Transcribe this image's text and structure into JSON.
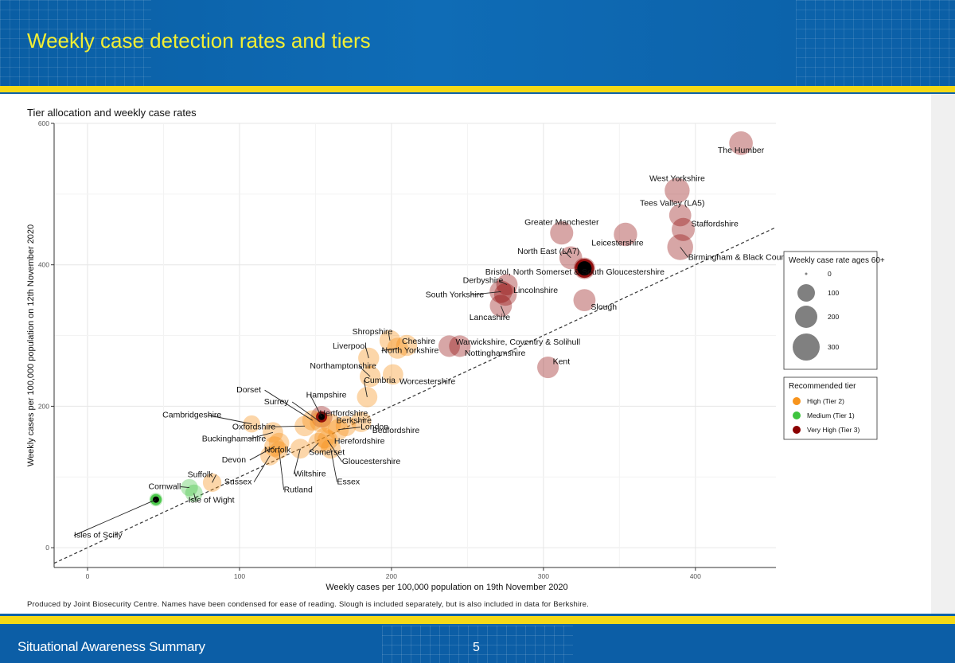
{
  "slide": {
    "title": "Weekly case detection rates and tiers",
    "footer": "Situational Awareness Summary",
    "page": "5"
  },
  "note": "Produced by Joint Biosecurity Centre. Names have been condensed for ease of reading. Slough is included separately, but is also included in data for Berkshire.",
  "colors": {
    "tier2": "#f7941d",
    "tier1": "#3ec43e",
    "tier3": "#8b0000",
    "title": "#f2ee34",
    "stripe": "#f5d915"
  },
  "chart_data": {
    "type": "scatter",
    "title": "Tier allocation and weekly case rates",
    "xlabel": "Weekly cases per 100,000 population on 19th November 2020",
    "ylabel": "Weekly cases per 100,000 population on 12th November 2020",
    "xlim": [
      -22,
      453
    ],
    "ylim": [
      -28,
      600
    ],
    "xticks": [
      0,
      100,
      200,
      300,
      400
    ],
    "yticks": [
      0,
      200,
      400,
      600
    ],
    "grid": true,
    "reference_line": "y = x",
    "legend_size": {
      "title": "Weekly case rate ages 60+",
      "entries": [
        0,
        100,
        200,
        300
      ]
    },
    "legend_tier": {
      "title": "Recommended tier",
      "entries": [
        {
          "label": "High (Tier 2)",
          "tier": "tier2"
        },
        {
          "label": "Medium (Tier 1)",
          "tier": "tier1"
        },
        {
          "label": "Very High (Tier 3)",
          "tier": "tier3"
        }
      ]
    },
    "points": [
      {
        "name": "The Humber",
        "x": 430,
        "y": 572,
        "r60": 180,
        "tier": "tier3"
      },
      {
        "name": "West Yorkshire",
        "x": 388,
        "y": 505,
        "r60": 210,
        "tier": "tier3"
      },
      {
        "name": "Tees Valley (LA5)",
        "x": 390,
        "y": 470,
        "r60": 150,
        "tier": "tier3"
      },
      {
        "name": "Staffordshire",
        "x": 392,
        "y": 450,
        "r60": 170,
        "tier": "tier3"
      },
      {
        "name": "Birmingham & Black Country",
        "x": 390,
        "y": 425,
        "r60": 230,
        "tier": "tier3"
      },
      {
        "name": "Greater Manchester",
        "x": 312,
        "y": 445,
        "r60": 170,
        "tier": "tier3"
      },
      {
        "name": "Leicestershire",
        "x": 354,
        "y": 443,
        "r60": 175,
        "tier": "tier3"
      },
      {
        "name": "North East (LA7)",
        "x": 318,
        "y": 410,
        "r60": 165,
        "tier": "tier3"
      },
      {
        "name": "Bristol, North Somerset & South Gloucestershire",
        "x": 327,
        "y": 395,
        "r60": 140,
        "tier": "tier3"
      },
      {
        "name": "Derbyshire",
        "x": 276,
        "y": 372,
        "r60": 135,
        "tier": "tier3"
      },
      {
        "name": "Lincolnshire",
        "x": 275,
        "y": 358,
        "r60": 160,
        "tier": "tier3"
      },
      {
        "name": "South Yorkshire",
        "x": 272,
        "y": 362,
        "r60": 160,
        "tier": "tier3"
      },
      {
        "name": "Lancashire",
        "x": 272,
        "y": 342,
        "r60": 150,
        "tier": "tier3"
      },
      {
        "name": "Slough",
        "x": 327,
        "y": 350,
        "r60": 150,
        "tier": "tier3"
      },
      {
        "name": "Kent",
        "x": 303,
        "y": 255,
        "r60": 140,
        "tier": "tier3"
      },
      {
        "name": "Warwickshire, Coventry & Solihull",
        "x": 238,
        "y": 285,
        "r60": 140,
        "tier": "tier3"
      },
      {
        "name": "Nottinghamshire",
        "x": 245,
        "y": 285,
        "r60": 140,
        "tier": "tier3"
      },
      {
        "name": "Shropshire",
        "x": 199,
        "y": 293,
        "r60": 130,
        "tier": "tier2"
      },
      {
        "name": "Cheshire",
        "x": 210,
        "y": 286,
        "r60": 130,
        "tier": "tier2"
      },
      {
        "name": "Liverpool",
        "x": 185,
        "y": 268,
        "r60": 130,
        "tier": "tier2"
      },
      {
        "name": "North Yorkshire",
        "x": 204,
        "y": 282,
        "r60": 130,
        "tier": "tier2"
      },
      {
        "name": "Northamptonshire",
        "x": 186,
        "y": 242,
        "r60": 130,
        "tier": "tier2"
      },
      {
        "name": "Worcestershire",
        "x": 201,
        "y": 245,
        "r60": 120,
        "tier": "tier2"
      },
      {
        "name": "Cumbria",
        "x": 184,
        "y": 213,
        "r60": 120,
        "tier": "tier2"
      },
      {
        "name": "Dorset",
        "x": 148,
        "y": 180,
        "r60": 120,
        "tier": "tier2"
      },
      {
        "name": "Surrey",
        "x": 153,
        "y": 178,
        "r60": 120,
        "tier": "tier2"
      },
      {
        "name": "Hampshire",
        "x": 154,
        "y": 185,
        "r60": 140,
        "tier": "tier3"
      },
      {
        "name": "Hertfordshire",
        "x": 160,
        "y": 175,
        "r60": 120,
        "tier": "tier2"
      },
      {
        "name": "Berkshire",
        "x": 170,
        "y": 172,
        "r60": 120,
        "tier": "tier2"
      },
      {
        "name": "London",
        "x": 165,
        "y": 167,
        "r60": 130,
        "tier": "tier2"
      },
      {
        "name": "Bedfordshire",
        "x": 180,
        "y": 178,
        "r60": 120,
        "tier": "tier2"
      },
      {
        "name": "Oxfordshire",
        "x": 143,
        "y": 172,
        "r60": 120,
        "tier": "tier2"
      },
      {
        "name": "Cambridgeshire",
        "x": 108,
        "y": 175,
        "r60": 70,
        "tier": "tier2"
      },
      {
        "name": "Buckinghamshire",
        "x": 122,
        "y": 163,
        "r60": 120,
        "tier": "tier2"
      },
      {
        "name": "Hereford­shire",
        "x": 156,
        "y": 155,
        "r60": 120,
        "tier": "tier2"
      },
      {
        "name": "Devon",
        "x": 123,
        "y": 143,
        "r60": 120,
        "tier": "tier2"
      },
      {
        "name": "Norfolk",
        "x": 126,
        "y": 148,
        "r60": 120,
        "tier": "tier2"
      },
      {
        "name": "Somerset",
        "x": 152,
        "y": 148,
        "r60": 120,
        "tier": "tier2"
      },
      {
        "name": "Gloucestershire",
        "x": 158,
        "y": 152,
        "r60": 120,
        "tier": "tier2"
      },
      {
        "name": "Sussex",
        "x": 120,
        "y": 130,
        "r60": 100,
        "tier": "tier2"
      },
      {
        "name": "Wiltshire",
        "x": 140,
        "y": 140,
        "r60": 110,
        "tier": "tier2"
      },
      {
        "name": "Essex",
        "x": 160,
        "y": 140,
        "r60": 110,
        "tier": "tier2"
      },
      {
        "name": "Rutland",
        "x": 126,
        "y": 138,
        "r60": 80,
        "tier": "tier2"
      },
      {
        "name": "Suffolk",
        "x": 82,
        "y": 92,
        "r60": 90,
        "tier": "tier2"
      },
      {
        "name": "Cornwall",
        "x": 67,
        "y": 85,
        "r60": 70,
        "tier": "tier1"
      },
      {
        "name": "Isle of Wight",
        "x": 70,
        "y": 77,
        "r60": 75,
        "tier": "tier1"
      },
      {
        "name": "Isles of Scilly",
        "x": 45,
        "y": 68,
        "r60": 30,
        "tier": "tier1"
      }
    ]
  }
}
